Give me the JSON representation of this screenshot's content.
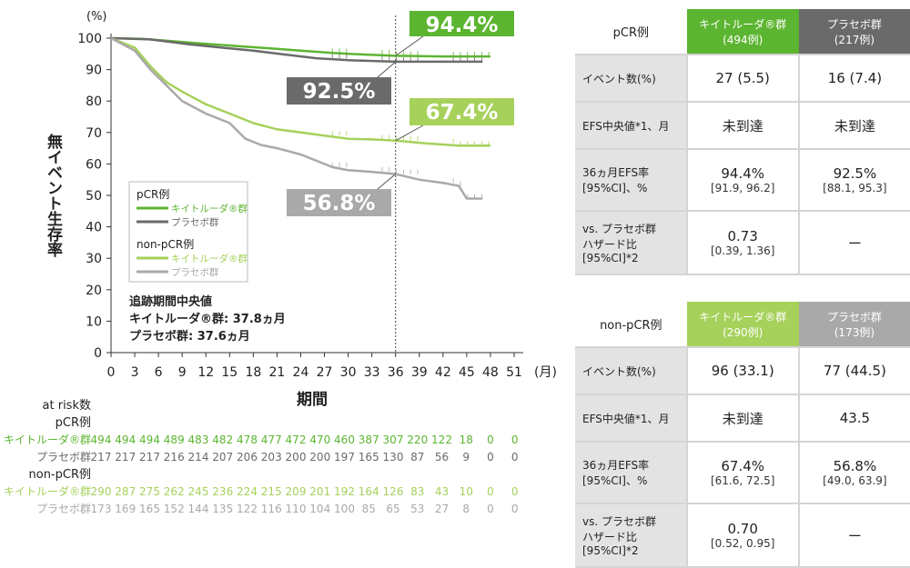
{
  "colors": {
    "k_pcr": "#5cb531",
    "p_pcr": "#6a6a6a",
    "k_non": "#a6d15b",
    "p_non": "#a9a9a9"
  },
  "chart_data": {
    "type": "line",
    "title": "",
    "xlabel": "期間",
    "ylabel": "無イベント生存率",
    "y_unit": "(%)",
    "x_unit": "(月)",
    "xlim": [
      0,
      51
    ],
    "ylim": [
      0,
      100
    ],
    "xticks": [
      0,
      3,
      6,
      9,
      12,
      15,
      18,
      21,
      24,
      27,
      30,
      33,
      36,
      39,
      42,
      45,
      48,
      51
    ],
    "yticks": [
      0,
      10,
      20,
      30,
      40,
      50,
      60,
      70,
      80,
      90,
      100
    ],
    "reference_line_x": 36,
    "series": [
      {
        "name": "pCR例 キイトルーダ®群",
        "color_key": "k_pcr",
        "points": [
          [
            0,
            100
          ],
          [
            4,
            99.8
          ],
          [
            8,
            99
          ],
          [
            12,
            98.2
          ],
          [
            16,
            97.5
          ],
          [
            20,
            96.8
          ],
          [
            24,
            96
          ],
          [
            28,
            95.3
          ],
          [
            32,
            94.8
          ],
          [
            36,
            94.4
          ],
          [
            42,
            94.2
          ],
          [
            48,
            94.2
          ]
        ]
      },
      {
        "name": "pCR例 プラセボ群",
        "color_key": "p_pcr",
        "points": [
          [
            0,
            100
          ],
          [
            5,
            99.6
          ],
          [
            10,
            98
          ],
          [
            14,
            97
          ],
          [
            18,
            96
          ],
          [
            22,
            94.8
          ],
          [
            26,
            93.6
          ],
          [
            30,
            93
          ],
          [
            36,
            92.5
          ],
          [
            42,
            92.5
          ],
          [
            47,
            92.5
          ]
        ]
      },
      {
        "name": "non-pCR例 キイトルーダ®群",
        "color_key": "k_non",
        "points": [
          [
            0,
            100
          ],
          [
            3,
            97
          ],
          [
            5,
            91
          ],
          [
            7,
            86
          ],
          [
            9,
            83
          ],
          [
            12,
            79
          ],
          [
            15,
            76
          ],
          [
            18,
            73
          ],
          [
            21,
            71
          ],
          [
            24,
            70
          ],
          [
            27,
            69
          ],
          [
            30,
            68
          ],
          [
            33,
            67.8
          ],
          [
            36,
            67.4
          ],
          [
            40,
            66.5
          ],
          [
            44,
            65.8
          ],
          [
            48,
            65.8
          ]
        ]
      },
      {
        "name": "non-pCR例 プラセボ群",
        "color_key": "p_non",
        "points": [
          [
            0,
            100
          ],
          [
            3,
            96
          ],
          [
            5,
            90
          ],
          [
            7,
            85
          ],
          [
            9,
            80
          ],
          [
            12,
            76
          ],
          [
            15,
            73
          ],
          [
            17,
            68
          ],
          [
            19,
            66
          ],
          [
            21,
            65
          ],
          [
            24,
            63
          ],
          [
            26,
            61
          ],
          [
            28,
            59
          ],
          [
            30,
            58
          ],
          [
            33,
            57.5
          ],
          [
            36,
            56.8
          ],
          [
            39,
            55
          ],
          [
            42,
            54
          ],
          [
            44,
            53
          ],
          [
            45,
            49
          ],
          [
            47,
            49
          ]
        ]
      }
    ],
    "callouts": [
      {
        "text": "94.4%",
        "color_key": "k_pcr",
        "y": 94.4
      },
      {
        "text": "92.5%",
        "color_key": "p_pcr",
        "y": 92.5
      },
      {
        "text": "67.4%",
        "color_key": "k_non",
        "y": 67.4
      },
      {
        "text": "56.8%",
        "color_key": "p_non",
        "y": 56.8
      }
    ],
    "legend": {
      "g1": "pCR例",
      "g2": "non-pCR例",
      "k": "キイトルーダ®群",
      "p": "プラセボ群",
      "placement": "center-left"
    },
    "followup": [
      "追跡期間中央値",
      "キイトルーダ®群: 37.8ヵ月",
      "プラセボ群: 37.6ヵ月"
    ]
  },
  "at_risk": {
    "title": "at risk数",
    "groups": [
      {
        "label": "pCR例",
        "rows": [
          {
            "label": "キイトルーダ®群",
            "color_key": "k_pcr",
            "values": [
              494,
              494,
              494,
              489,
              483,
              482,
              478,
              477,
              472,
              470,
              460,
              387,
              307,
              220,
              122,
              18,
              0,
              0
            ]
          },
          {
            "label": "プラセボ群",
            "color_key": "p_pcr",
            "values": [
              217,
              217,
              217,
              216,
              214,
              207,
              206,
              203,
              200,
              200,
              197,
              165,
              130,
              87,
              56,
              9,
              0,
              0
            ]
          }
        ]
      },
      {
        "label": "non-pCR例",
        "rows": [
          {
            "label": "キイトルーダ®群",
            "color_key": "k_non",
            "values": [
              290,
              287,
              275,
              262,
              245,
              236,
              224,
              215,
              209,
              201,
              192,
              164,
              126,
              83,
              43,
              10,
              0,
              0
            ]
          },
          {
            "label": "プラセボ群",
            "color_key": "p_non",
            "values": [
              173,
              169,
              165,
              152,
              144,
              135,
              122,
              116,
              110,
              104,
              100,
              85,
              65,
              53,
              27,
              8,
              0,
              0
            ]
          }
        ]
      }
    ]
  },
  "table_pcr": {
    "head": "pCR例",
    "col1": [
      "キイトルーダ®群",
      "(494例)"
    ],
    "col2": [
      "プラセボ群",
      "(217例)"
    ],
    "rows": [
      {
        "label": [
          "イベント数(%)"
        ],
        "c1": [
          "27 (5.5)",
          ""
        ],
        "c2": [
          "16 (7.4)",
          ""
        ]
      },
      {
        "label": [
          "EFS中央値*1、月"
        ],
        "c1": [
          "未到達",
          ""
        ],
        "c2": [
          "未到達",
          ""
        ]
      },
      {
        "label": [
          "36ヵ月EFS率",
          "[95%CI]、%"
        ],
        "c1": [
          "94.4%",
          "[91.9, 96.2]"
        ],
        "c2": [
          "92.5%",
          "[88.1, 95.3]"
        ]
      },
      {
        "label": [
          "vs. プラセボ群",
          "ハザード比",
          "[95%CI]*2"
        ],
        "c1": [
          "0.73",
          "[0.39, 1.36]"
        ],
        "c2": [
          "ー",
          ""
        ]
      }
    ]
  },
  "table_non": {
    "head": "non-pCR例",
    "col1": [
      "キイトルーダ®群",
      "(290例)"
    ],
    "col2": [
      "プラセボ群",
      "(173例)"
    ],
    "rows": [
      {
        "label": [
          "イベント数(%)"
        ],
        "c1": [
          "96 (33.1)",
          ""
        ],
        "c2": [
          "77 (44.5)",
          ""
        ]
      },
      {
        "label": [
          "EFS中央値*1、月"
        ],
        "c1": [
          "未到達",
          ""
        ],
        "c2": [
          "43.5",
          ""
        ]
      },
      {
        "label": [
          "36ヵ月EFS率",
          "[95%CI]、%"
        ],
        "c1": [
          "67.4%",
          "[61.6, 72.5]"
        ],
        "c2": [
          "56.8%",
          "[49.0, 63.9]"
        ]
      },
      {
        "label": [
          "vs. プラセボ群",
          "ハザード比",
          "[95%CI]*2"
        ],
        "c1": [
          "0.70",
          "[0.52, 0.95]"
        ],
        "c2": [
          "ー",
          ""
        ]
      }
    ]
  }
}
